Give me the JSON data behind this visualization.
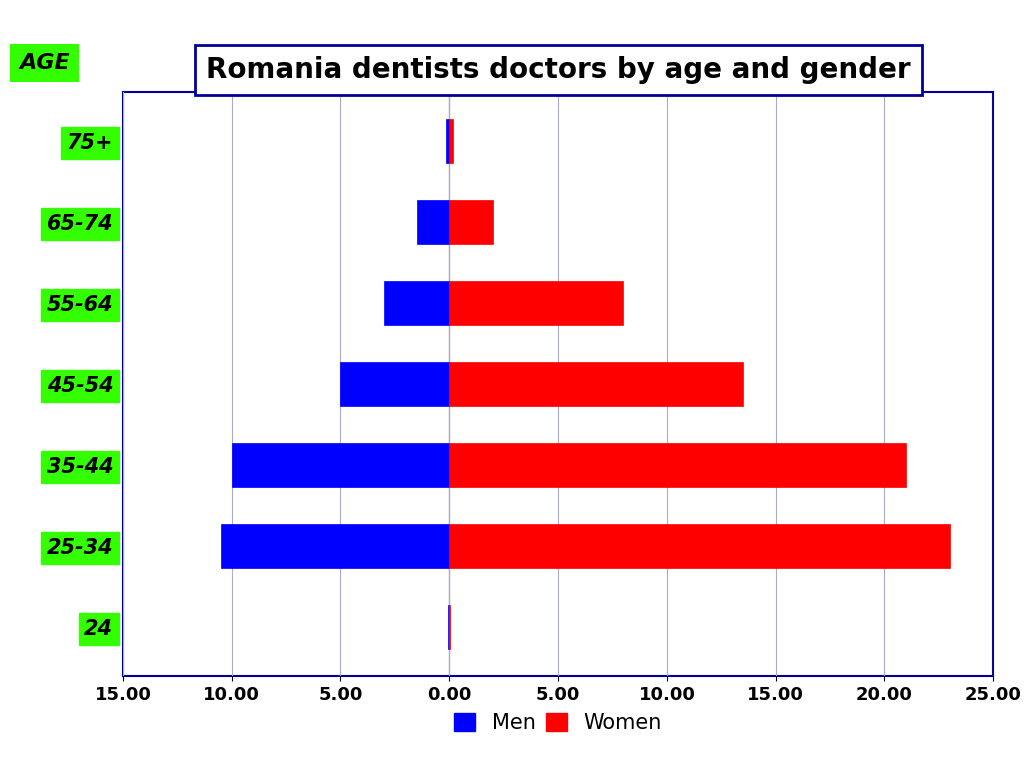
{
  "title": "Romania dentists doctors by age and gender",
  "age_groups": [
    "75+",
    "65-74",
    "55-64",
    "45-54",
    "35-44",
    "25-34",
    "24"
  ],
  "men_values": [
    -0.15,
    -1.5,
    -3.0,
    -5.0,
    -10.0,
    -10.5,
    -0.05
  ],
  "women_values": [
    0.15,
    2.0,
    8.0,
    13.5,
    21.0,
    23.0,
    0.05
  ],
  "men_color": "#0000FF",
  "women_color": "#FF0000",
  "bar_height": 0.55,
  "xlim": [
    -15,
    25
  ],
  "xticks": [
    -15,
    -10,
    -5,
    0,
    5,
    10,
    15,
    20,
    25
  ],
  "xtick_labels": [
    "15.00",
    "10.00",
    "5.00",
    "0.00",
    "5.00",
    "10.00",
    "15.00",
    "20.00",
    "25.00"
  ],
  "ylabel_box_color": "#33FF00",
  "ylabel_text": "AGE",
  "age_label_color": "#33FF00",
  "title_box_edge": "#000099",
  "grid_color": "#AAAACC",
  "background_color": "#FFFFFF",
  "legend_men": "Men",
  "legend_women": "Women",
  "figsize": [
    10.24,
    7.68
  ],
  "dpi": 100,
  "spine_color": "#000099"
}
